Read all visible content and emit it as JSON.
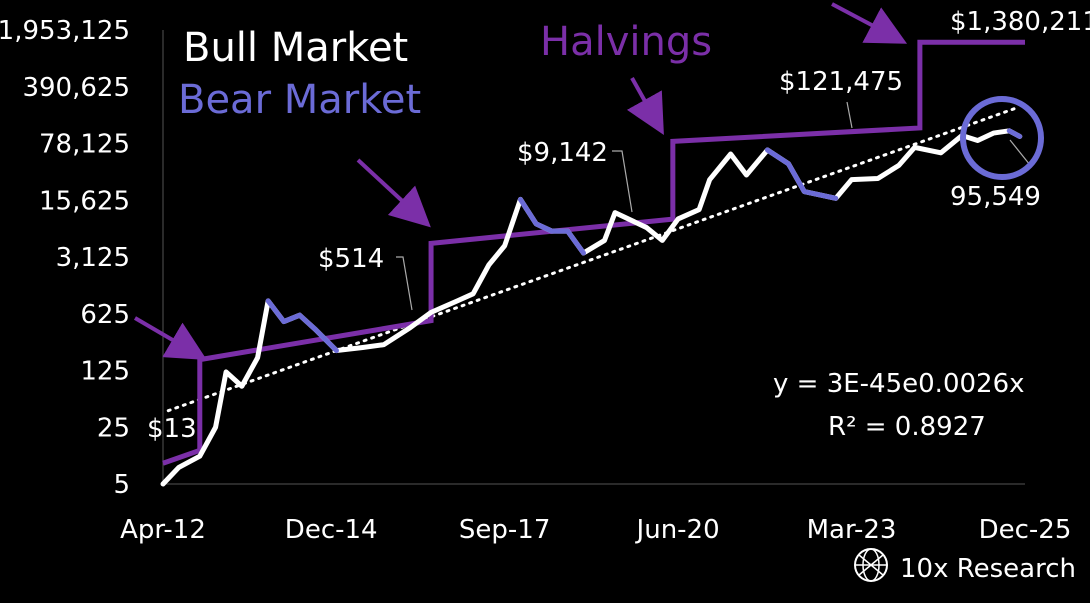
{
  "chart_data": {
    "type": "line",
    "title": "",
    "legend": {
      "bull_label": "Bull Market",
      "bear_label": "Bear Market",
      "halvings_label": "Halvings",
      "bull_color": "#ffffff",
      "bear_color": "#6b6bd6",
      "halving_color": "#7b2fa8",
      "circle_color": "#6b6bd6"
    },
    "x_ticks": [
      "Apr-12",
      "Dec-14",
      "Sep-17",
      "Jun-20",
      "Mar-23",
      "Dec-25"
    ],
    "x_tick_dates": [
      "2012-04",
      "2014-12",
      "2017-09",
      "2020-06",
      "2023-03",
      "2025-12"
    ],
    "y_ticks": [
      "1,953,125",
      "390,625",
      "78,125",
      "15,625",
      "3,125",
      "625",
      "125",
      "25",
      "5"
    ],
    "y_tick_values": [
      1953125,
      390625,
      78125,
      15625,
      3125,
      625,
      125,
      25,
      5
    ],
    "y_scale": "log",
    "xlim": [
      "2012-04",
      "2025-12"
    ],
    "ylim": [
      5,
      1953125
    ],
    "price_series": [
      [
        "2012-04",
        5
      ],
      [
        "2012-07",
        8
      ],
      [
        "2012-11",
        11
      ],
      [
        "2013-02",
        25
      ],
      [
        "2013-04",
        120
      ],
      [
        "2013-07",
        80
      ],
      [
        "2013-10",
        180
      ],
      [
        "2013-12",
        900
      ],
      [
        "2014-03",
        500
      ],
      [
        "2014-06",
        600
      ],
      [
        "2014-09",
        400
      ],
      [
        "2015-01",
        220
      ],
      [
        "2015-06",
        240
      ],
      [
        "2015-10",
        260
      ],
      [
        "2016-03",
        420
      ],
      [
        "2016-07",
        650
      ],
      [
        "2016-12",
        900
      ],
      [
        "2017-03",
        1100
      ],
      [
        "2017-06",
        2500
      ],
      [
        "2017-09",
        4300
      ],
      [
        "2017-12",
        16000
      ],
      [
        "2018-03",
        8000
      ],
      [
        "2018-06",
        6500
      ],
      [
        "2018-09",
        6500
      ],
      [
        "2018-12",
        3500
      ],
      [
        "2019-04",
        5000
      ],
      [
        "2019-06",
        11000
      ],
      [
        "2019-12",
        7200
      ],
      [
        "2020-03",
        5000
      ],
      [
        "2020-06",
        9200
      ],
      [
        "2020-10",
        12000
      ],
      [
        "2020-12",
        28000
      ],
      [
        "2021-04",
        58000
      ],
      [
        "2021-07",
        32000
      ],
      [
        "2021-11",
        65000
      ],
      [
        "2022-03",
        44000
      ],
      [
        "2022-06",
        20000
      ],
      [
        "2022-12",
        16500
      ],
      [
        "2023-03",
        28000
      ],
      [
        "2023-08",
        29000
      ],
      [
        "2023-12",
        42000
      ],
      [
        "2024-03",
        70000
      ],
      [
        "2024-08",
        60000
      ],
      [
        "2024-12",
        98000
      ],
      [
        "2025-03",
        85000
      ],
      [
        "2025-06",
        105000
      ],
      [
        "2025-09",
        112000
      ],
      [
        "2025-11",
        95549
      ]
    ],
    "bear_segments": [
      [
        [
          "2013-12",
          900
        ],
        [
          "2014-03",
          500
        ],
        [
          "2014-06",
          600
        ],
        [
          "2014-09",
          400
        ],
        [
          "2015-01",
          220
        ]
      ],
      [
        [
          "2017-12",
          16000
        ],
        [
          "2018-03",
          8000
        ],
        [
          "2018-06",
          6500
        ],
        [
          "2018-09",
          6500
        ],
        [
          "2018-12",
          3500
        ]
      ],
      [
        [
          "2021-11",
          65000
        ],
        [
          "2022-03",
          44000
        ],
        [
          "2022-06",
          20000
        ],
        [
          "2022-12",
          16500
        ]
      ],
      [
        [
          "2025-09",
          112000
        ],
        [
          "2025-11",
          95549
        ]
      ]
    ],
    "halving_step_line": [
      [
        "2012-04",
        9
      ],
      [
        "2012-11",
        13
      ],
      [
        "2012-11",
        170
      ],
      [
        "2016-07",
        514
      ],
      [
        "2016-07",
        4600
      ],
      [
        "2020-05",
        9142
      ],
      [
        "2020-05",
        83000
      ],
      [
        "2024-04",
        121475
      ],
      [
        "2024-04",
        1380211
      ],
      [
        "2025-12",
        1380211
      ]
    ],
    "trend_line": [
      [
        "2012-05",
        40
      ],
      [
        "2025-10",
        210000
      ]
    ],
    "halving_labels": [
      {
        "text": "$13",
        "date": "2012-11",
        "value": 13
      },
      {
        "text": "$514",
        "date": "2016-07",
        "value": 514
      },
      {
        "text": "$9,142",
        "date": "2020-05",
        "value": 9142
      },
      {
        "text": "$121,475",
        "date": "2024-04",
        "value": 121475
      },
      {
        "text": "$1,380,211",
        "date": "2025-12",
        "value": 1380211
      }
    ],
    "current_label": {
      "text": "95,549",
      "date": "2025-11",
      "value": 95549
    },
    "regression": {
      "equation": "y = 3E-45e0.0026x",
      "r2": "R² = 0.8927"
    }
  },
  "brand": {
    "name": "10x Research",
    "icon": "globe-logo-icon"
  }
}
